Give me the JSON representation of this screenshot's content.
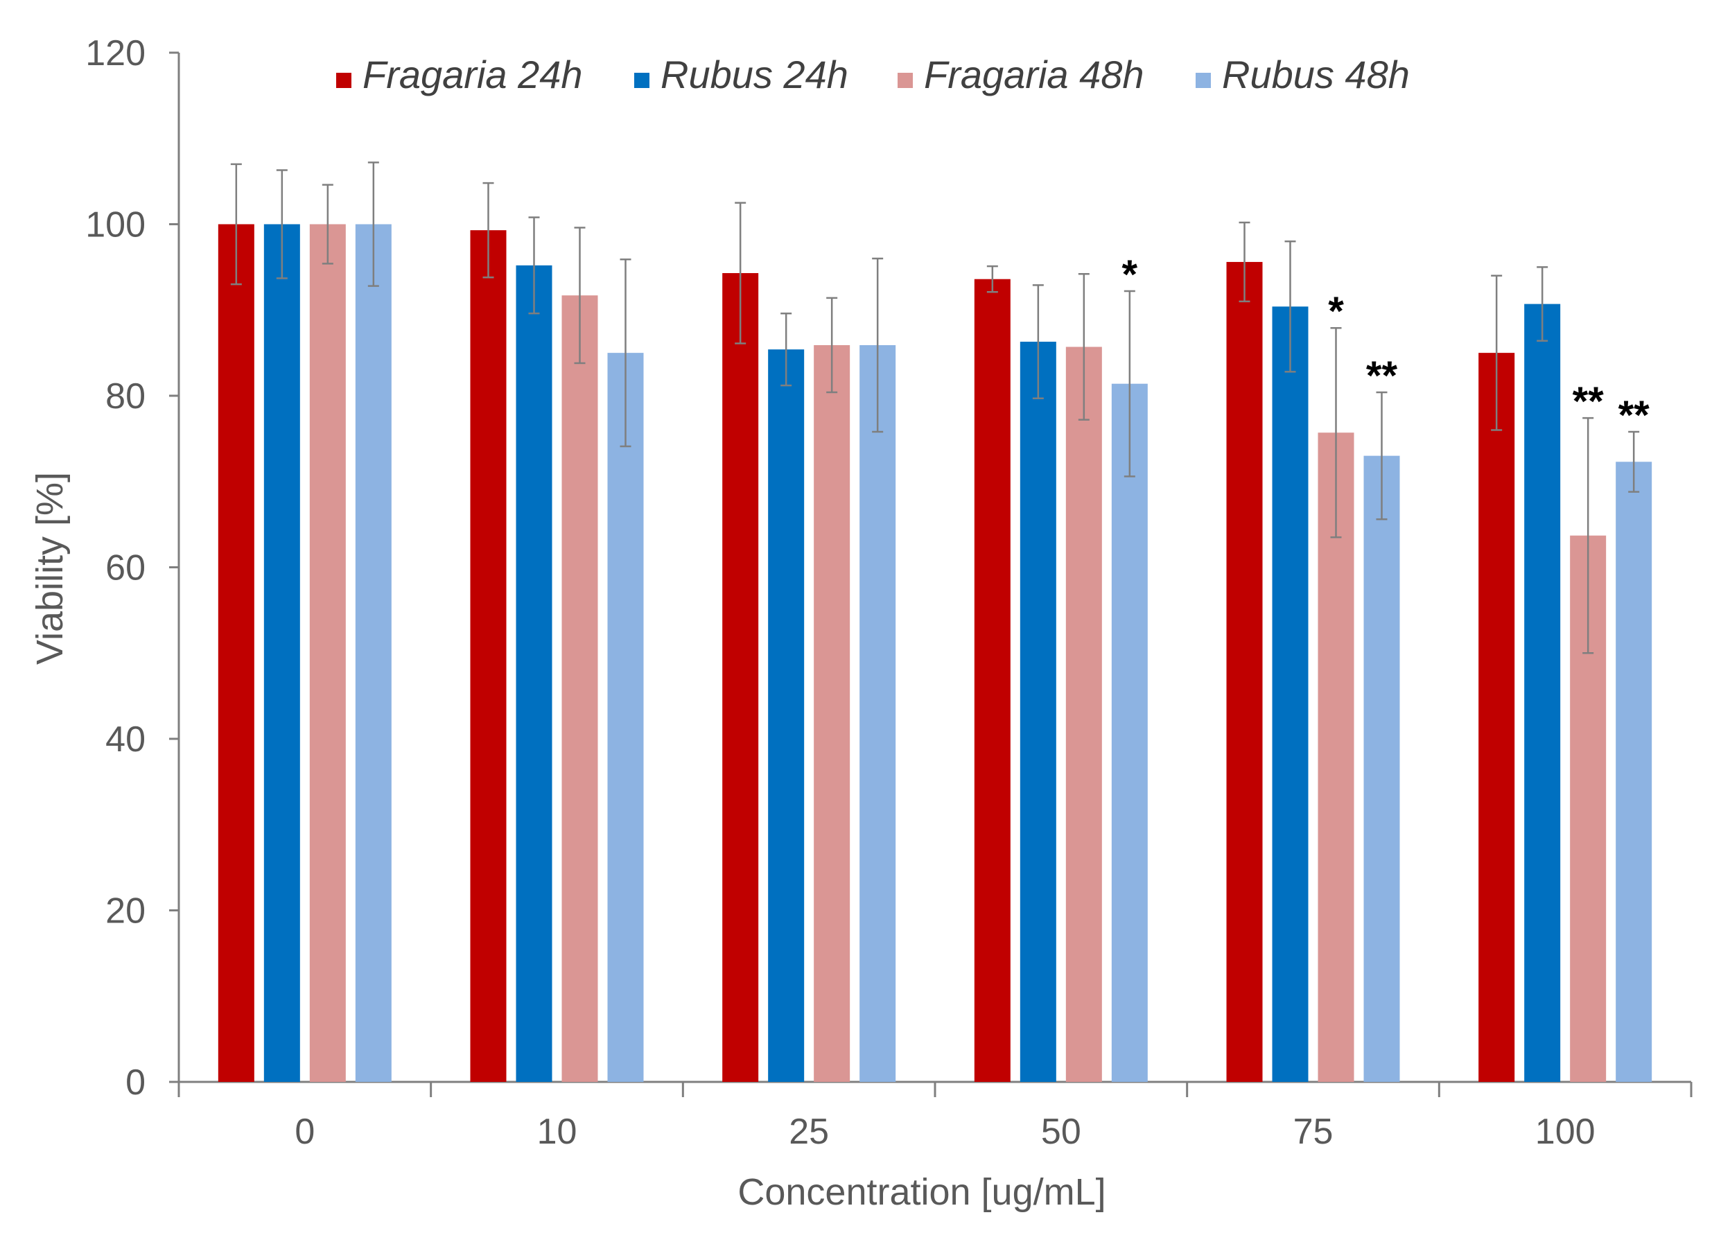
{
  "chart_data": {
    "type": "bar",
    "title": "",
    "xlabel": "Concentration [ug/mL]",
    "ylabel": "Viability [%]",
    "ylim": [
      0,
      120
    ],
    "yticks": [
      0,
      20,
      40,
      60,
      80,
      100,
      120
    ],
    "categories": [
      "0",
      "10",
      "25",
      "50",
      "75",
      "100"
    ],
    "legend_position": "top",
    "grid": false,
    "series": [
      {
        "name": "Fragaria 24h",
        "color": "#c00000",
        "values": [
          100,
          99.3,
          94.3,
          93.6,
          95.6,
          85
        ],
        "errors": [
          7,
          5.5,
          8.2,
          1.5,
          4.6,
          9
        ],
        "annotations": [
          "",
          "",
          "",
          "",
          "",
          ""
        ]
      },
      {
        "name": "Rubus 24h",
        "color": "#0070c0",
        "values": [
          100,
          95.2,
          85.4,
          86.3,
          90.4,
          90.7
        ],
        "errors": [
          6.3,
          5.6,
          4.2,
          6.6,
          7.6,
          4.3
        ],
        "annotations": [
          "",
          "",
          "",
          "",
          "",
          ""
        ]
      },
      {
        "name": "Fragaria 48h",
        "color": "#da9694",
        "values": [
          100,
          91.7,
          85.9,
          85.7,
          75.7,
          63.7
        ],
        "errors": [
          4.6,
          7.9,
          5.5,
          8.5,
          12.2,
          13.7
        ],
        "annotations": [
          "",
          "",
          "",
          "",
          "*",
          "**"
        ]
      },
      {
        "name": "Rubus 48h",
        "color": "#8db3e2",
        "values": [
          100,
          85,
          85.9,
          81.4,
          73,
          72.3
        ],
        "errors": [
          7.2,
          10.9,
          10.1,
          10.8,
          7.4,
          3.5
        ],
        "annotations": [
          "",
          "",
          "",
          "*",
          "**",
          "**"
        ]
      }
    ]
  }
}
